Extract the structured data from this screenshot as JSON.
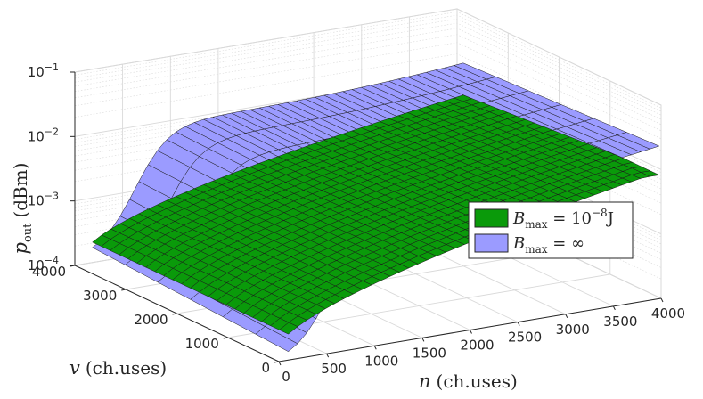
{
  "chart_data": {
    "type": "surface",
    "title": "",
    "xlabel": {
      "symbol": "n",
      "unit": "(ch.uses)"
    },
    "ylabel": {
      "symbol": "v",
      "unit": "(ch.uses)"
    },
    "zlabel": {
      "symbol": "p",
      "subscript": "out",
      "unit": "(dBm)"
    },
    "x_ticks": [
      "0",
      "500",
      "1000",
      "1500",
      "2000",
      "2500",
      "3000",
      "3500",
      "4000"
    ],
    "y_ticks": [
      "0",
      "1000",
      "2000",
      "3000",
      "4000"
    ],
    "z_ticks": [
      {
        "base": "10",
        "exp": "-4"
      },
      {
        "base": "10",
        "exp": "-3"
      },
      {
        "base": "10",
        "exp": "-2"
      },
      {
        "base": "10",
        "exp": "-1"
      }
    ],
    "xlim": [
      0,
      4000
    ],
    "ylim": [
      0,
      4000
    ],
    "zlim_log10": [
      -4,
      -1
    ],
    "grid": true,
    "legend_position": "center-right",
    "series": [
      {
        "name": "B_max = 10^-8 J",
        "label_base": "B",
        "label_sub": "max",
        "label_rel": " = 10",
        "label_exp": "−8",
        "label_tail": "J",
        "color": "#0a9a0a"
      },
      {
        "name": "B_max = ∞",
        "label_base": "B",
        "label_sub": "max",
        "label_rel": " = ∞",
        "label_exp": "",
        "label_tail": "",
        "color": "#9b9bff"
      }
    ]
  }
}
